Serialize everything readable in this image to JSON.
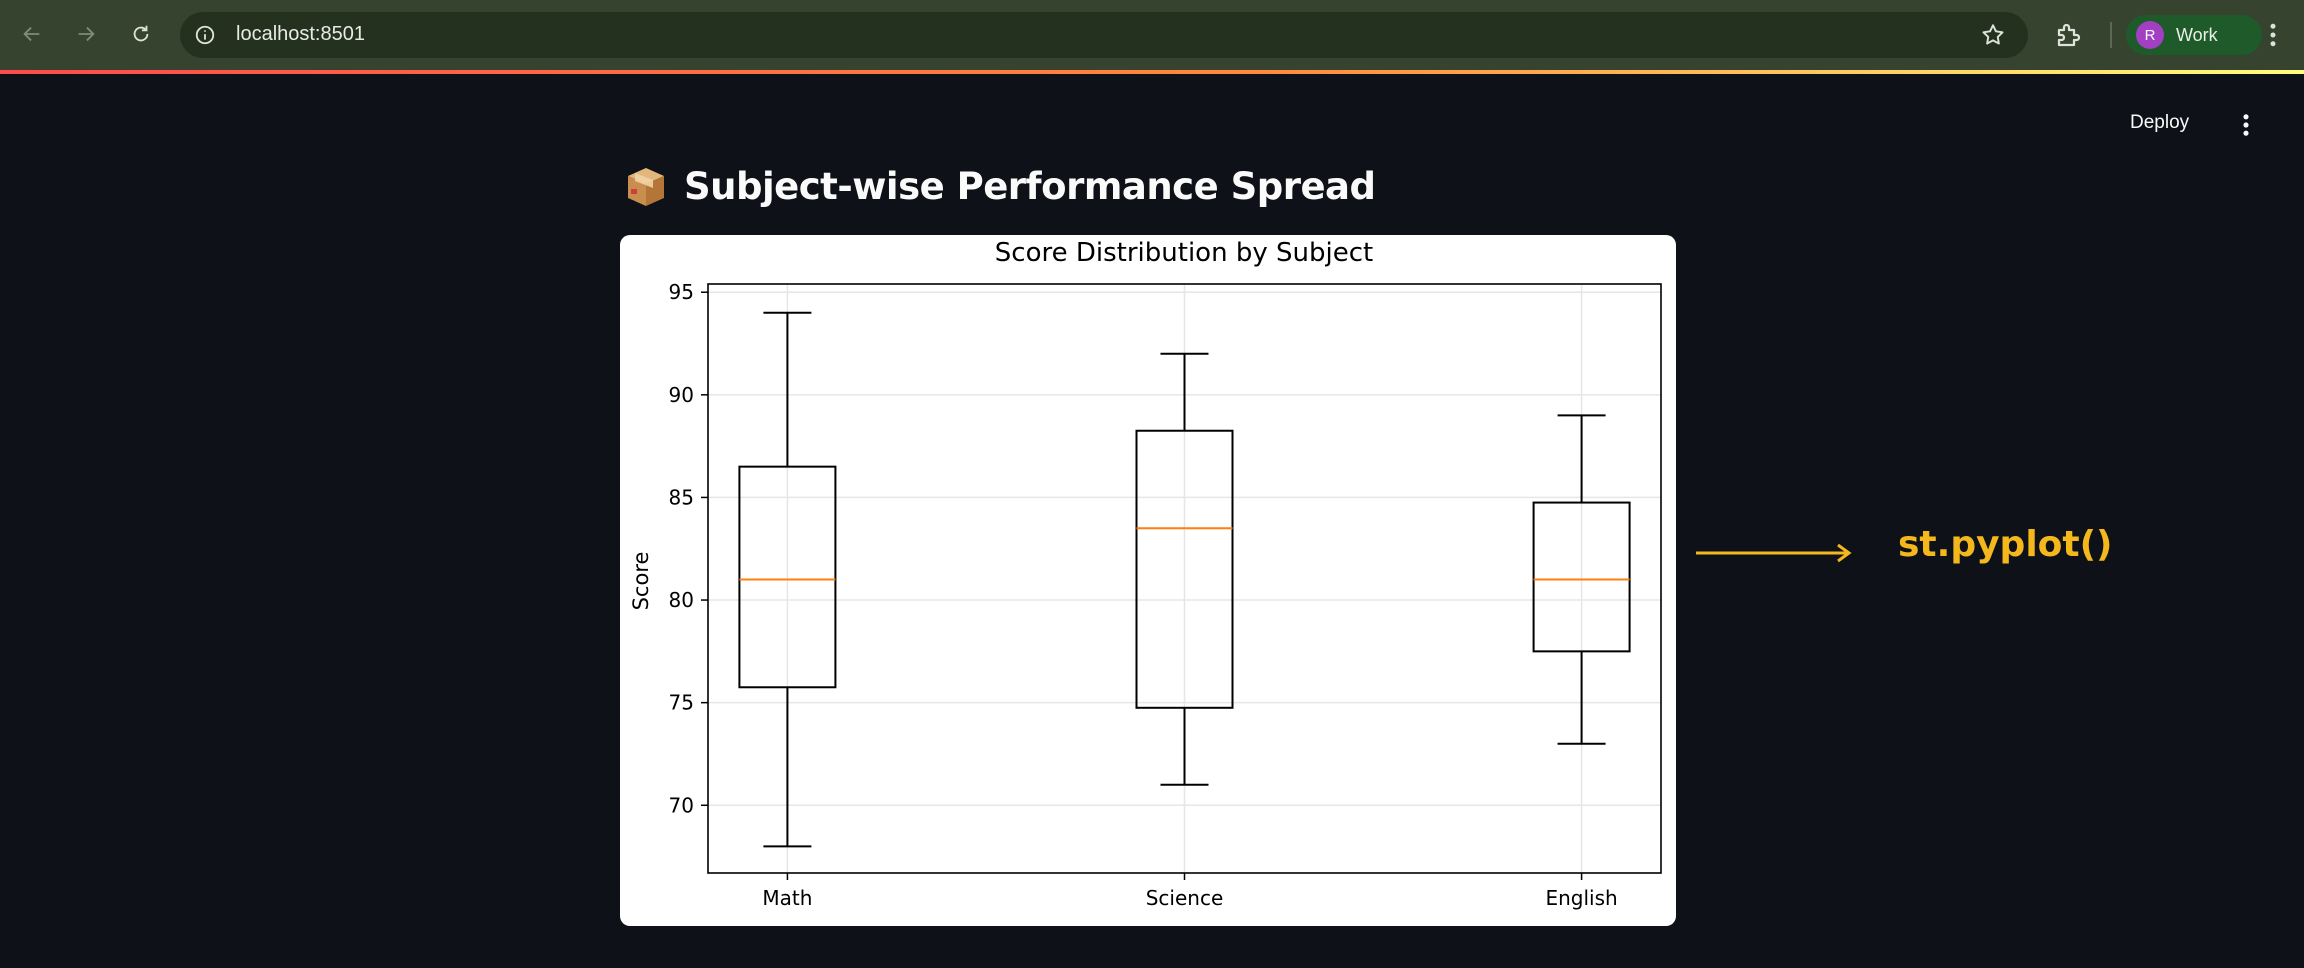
{
  "browser": {
    "url": "localhost:8501",
    "profile_initial": "R",
    "profile_name": "Work",
    "icons": [
      "back-arrow-icon",
      "forward-arrow-icon",
      "reload-icon",
      "site-info-icon",
      "bookmark-star-icon",
      "extensions-icon",
      "chrome-menu-icon"
    ]
  },
  "app": {
    "deploy_label": "Deploy",
    "title": "Subject-wise Performance Spread",
    "title_icon": "package-box-emoji"
  },
  "annotation": {
    "label": "st.pyplot()",
    "color": "#f5b81c"
  },
  "chart_data": {
    "type": "boxplot",
    "title": "Score Distribution by Subject",
    "xlabel": "",
    "ylabel": "Score",
    "categories": [
      "Math",
      "Science",
      "English"
    ],
    "boxes": [
      {
        "category": "Math",
        "whislo": 68,
        "q1": 75.75,
        "median": 81,
        "q3": 86.5,
        "whishi": 94
      },
      {
        "category": "Science",
        "whislo": 71,
        "q1": 74.75,
        "median": 83.5,
        "q3": 88.25,
        "whishi": 92
      },
      {
        "category": "English",
        "whislo": 73,
        "q1": 77.5,
        "median": 81,
        "q3": 84.75,
        "whishi": 89
      }
    ],
    "yticks": [
      70,
      75,
      80,
      85,
      90,
      95
    ],
    "ylim": [
      66.7,
      95.4
    ],
    "grid": true,
    "box_color": "#000000",
    "median_color": "#ff7f0e"
  }
}
